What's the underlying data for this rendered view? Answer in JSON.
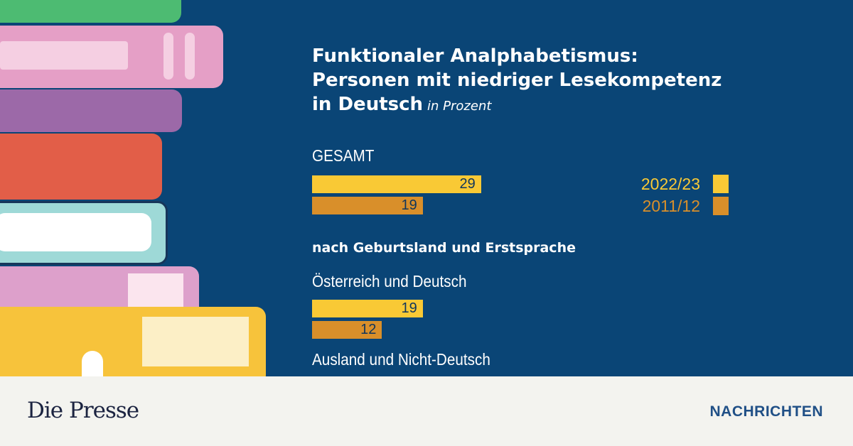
{
  "title": {
    "line1": "Funktionaler Analphabetismus:",
    "line2": "Personen mit niedriger Lesekompetenz",
    "line3": "in Deutsch",
    "unit": "in Prozent"
  },
  "chart_data": {
    "type": "bar",
    "orientation": "horizontal",
    "title": "Funktionaler Analphabetismus: Personen mit niedriger Lesekompetenz in Deutsch",
    "unit": "in Prozent",
    "subtitle": "nach Geburtsland und Erstsprache",
    "groups": [
      {
        "label": "GESAMT",
        "values": {
          "2022/23": 29,
          "2011/12": 19
        }
      },
      {
        "label": "Österreich und Deutsch",
        "values": {
          "2022/23": 19,
          "2011/12": 12
        }
      },
      {
        "label": "Ausland und Nicht-Deutsch",
        "values": {}
      }
    ],
    "series": [
      {
        "name": "2022/23",
        "color": "#f9c935"
      },
      {
        "name": "2011/12",
        "color": "#d98f2a"
      }
    ],
    "legend": "right"
  },
  "footer": {
    "logo": "Die Presse",
    "section": "NACHRICHTEN"
  }
}
